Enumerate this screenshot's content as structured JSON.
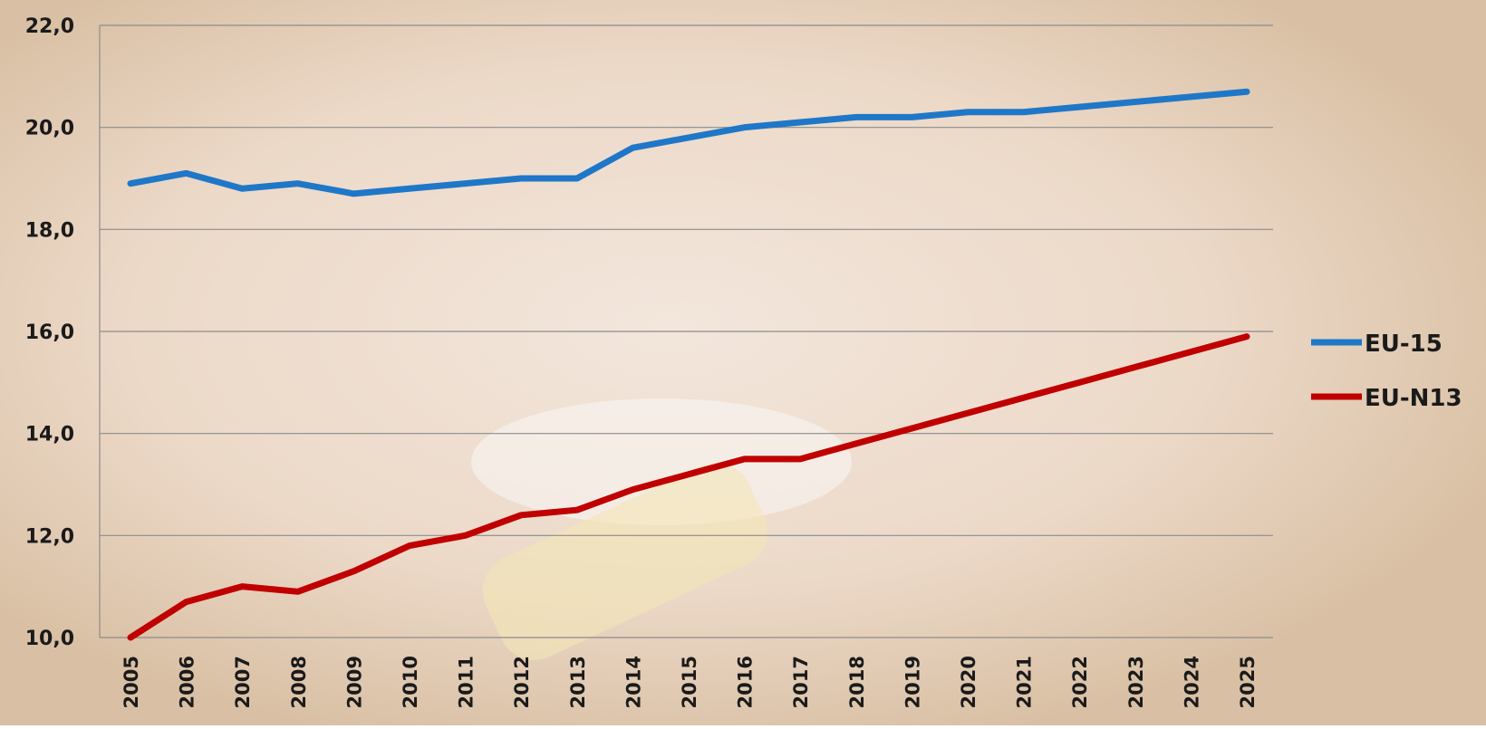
{
  "chart_data": {
    "type": "line",
    "categories": [
      "2005",
      "2006",
      "2007",
      "2008",
      "2009",
      "2010",
      "2011",
      "2012",
      "2013",
      "2014",
      "2015",
      "2016",
      "2017",
      "2018",
      "2019",
      "2020",
      "2021",
      "2022",
      "2023",
      "2024",
      "2025"
    ],
    "series": [
      {
        "name": "EU-15",
        "color": "#1f77c8",
        "values": [
          18.9,
          19.1,
          18.8,
          18.9,
          18.7,
          18.8,
          18.9,
          19.0,
          19.0,
          19.6,
          19.8,
          20.0,
          20.1,
          20.2,
          20.2,
          20.3,
          20.3,
          20.4,
          20.5,
          20.6,
          20.7
        ]
      },
      {
        "name": "EU-N13",
        "color": "#c00000",
        "values": [
          10.0,
          10.7,
          11.0,
          10.9,
          11.3,
          11.8,
          12.0,
          12.4,
          12.5,
          12.9,
          13.2,
          13.5,
          13.5,
          13.8,
          14.1,
          14.4,
          14.7,
          15.0,
          15.3,
          15.6,
          15.9
        ]
      }
    ],
    "ylim": [
      10,
      22
    ],
    "yticks": [
      {
        "value": 10,
        "label": "10,0"
      },
      {
        "value": 12,
        "label": "12,0"
      },
      {
        "value": 14,
        "label": "14,0"
      },
      {
        "value": 16,
        "label": "16,0"
      },
      {
        "value": 18,
        "label": "18,0"
      },
      {
        "value": 20,
        "label": "20,0"
      },
      {
        "value": 22,
        "label": "22,0"
      }
    ],
    "grid": true,
    "legend": "right"
  }
}
